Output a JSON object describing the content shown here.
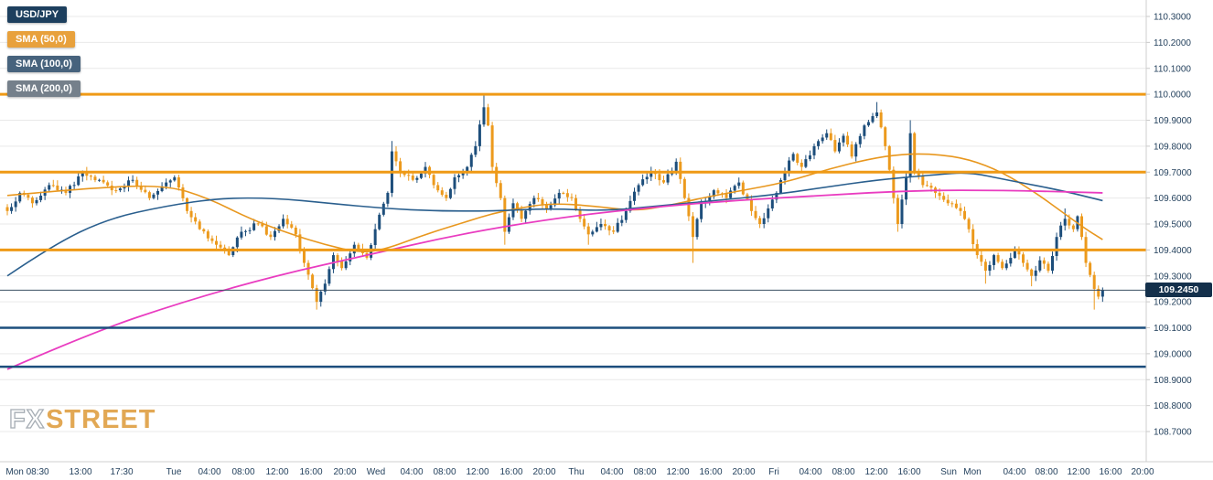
{
  "watermark": {
    "fx": "FX",
    "street": "STREET"
  },
  "legend": {
    "symbol": "USD/JPY",
    "symbol_color": "#1d3f5e",
    "indicators": [
      {
        "label": "SMA (50,0)",
        "color": "#e8a13c"
      },
      {
        "label": "SMA (100,0)",
        "color": "#47637d"
      },
      {
        "label": "SMA (200,0)",
        "color": "#75808b"
      }
    ]
  },
  "last_price": {
    "value": "109.2450",
    "color": "#14304b"
  },
  "axes": {
    "y_ticks": [
      "110.3000",
      "110.2000",
      "110.1000",
      "110.0000",
      "109.9000",
      "109.8000",
      "109.7000",
      "109.6000",
      "109.5000",
      "109.4000",
      "109.3000",
      "109.2000",
      "109.1000",
      "109.0000",
      "108.9000",
      "108.8000",
      "108.7000"
    ],
    "x_labels": [
      {
        "label": "Mon 08:30",
        "x": 30
      },
      {
        "label": "13:00",
        "x": 88
      },
      {
        "label": "17:30",
        "x": 133
      },
      {
        "label": "Tue",
        "x": 190
      },
      {
        "label": "04:00",
        "x": 229
      },
      {
        "label": "08:00",
        "x": 266
      },
      {
        "label": "12:00",
        "x": 303
      },
      {
        "label": "16:00",
        "x": 340
      },
      {
        "label": "20:00",
        "x": 377
      },
      {
        "label": "Wed",
        "x": 411
      },
      {
        "label": "04:00",
        "x": 450
      },
      {
        "label": "08:00",
        "x": 486
      },
      {
        "label": "12:00",
        "x": 522
      },
      {
        "label": "16:00",
        "x": 559
      },
      {
        "label": "20:00",
        "x": 595
      },
      {
        "label": "Thu",
        "x": 630
      },
      {
        "label": "04:00",
        "x": 669
      },
      {
        "label": "08:00",
        "x": 705
      },
      {
        "label": "12:00",
        "x": 741
      },
      {
        "label": "16:00",
        "x": 777
      },
      {
        "label": "20:00",
        "x": 813
      },
      {
        "label": "Fri",
        "x": 846
      },
      {
        "label": "04:00",
        "x": 886
      },
      {
        "label": "08:00",
        "x": 922
      },
      {
        "label": "12:00",
        "x": 958
      },
      {
        "label": "16:00",
        "x": 994
      },
      {
        "label": "Sun",
        "x": 1037
      },
      {
        "label": "Mon",
        "x": 1063
      },
      {
        "label": "04:00",
        "x": 1109
      },
      {
        "label": "08:00",
        "x": 1144
      },
      {
        "label": "12:00",
        "x": 1179
      },
      {
        "label": "16:00",
        "x": 1214
      },
      {
        "label": "20:00",
        "x": 1249
      }
    ]
  },
  "chart_data": {
    "type": "candlestick",
    "pair": "USD/JPY",
    "y_range": [
      108.7,
      110.3
    ],
    "tick_interval": 0.1,
    "grid": true,
    "candle_count": 263,
    "up_color": "#1d4e7b",
    "down_color": "#ec9a1d",
    "price_keypoints": [
      [
        0,
        109.55
      ],
      [
        3,
        109.62
      ],
      [
        6,
        109.58
      ],
      [
        10,
        109.65
      ],
      [
        14,
        109.62
      ],
      [
        18,
        109.7
      ],
      [
        22,
        109.67
      ],
      [
        26,
        109.63
      ],
      [
        30,
        109.67
      ],
      [
        34,
        109.6
      ],
      [
        38,
        109.66
      ],
      [
        40,
        109.68
      ],
      [
        43,
        109.55
      ],
      [
        46,
        109.48
      ],
      [
        50,
        109.42
      ],
      [
        53,
        109.38
      ],
      [
        56,
        109.47
      ],
      [
        60,
        109.5
      ],
      [
        63,
        109.45
      ],
      [
        66,
        109.52
      ],
      [
        69,
        109.46
      ],
      [
        71,
        109.35
      ],
      [
        74,
        109.2
      ],
      [
        76,
        109.27
      ],
      [
        78,
        109.38
      ],
      [
        80,
        109.33
      ],
      [
        83,
        109.42
      ],
      [
        86,
        109.37
      ],
      [
        88,
        109.48
      ],
      [
        91,
        109.62
      ],
      [
        92,
        109.78
      ],
      [
        94,
        109.7
      ],
      [
        97,
        109.67
      ],
      [
        100,
        109.72
      ],
      [
        102,
        109.65
      ],
      [
        105,
        109.6
      ],
      [
        107,
        109.68
      ],
      [
        110,
        109.72
      ],
      [
        112,
        109.8
      ],
      [
        114,
        109.95
      ],
      [
        115,
        109.88
      ],
      [
        116,
        109.72
      ],
      [
        118,
        109.6
      ],
      [
        119,
        109.47
      ],
      [
        121,
        109.58
      ],
      [
        123,
        109.52
      ],
      [
        126,
        109.6
      ],
      [
        129,
        109.56
      ],
      [
        132,
        109.62
      ],
      [
        135,
        109.6
      ],
      [
        137,
        109.52
      ],
      [
        139,
        109.46
      ],
      [
        142,
        109.5
      ],
      [
        145,
        109.47
      ],
      [
        148,
        109.55
      ],
      [
        151,
        109.65
      ],
      [
        154,
        109.7
      ],
      [
        157,
        109.66
      ],
      [
        160,
        109.74
      ],
      [
        162,
        109.6
      ],
      [
        164,
        109.45
      ],
      [
        166,
        109.58
      ],
      [
        169,
        109.63
      ],
      [
        172,
        109.6
      ],
      [
        175,
        109.66
      ],
      [
        178,
        109.55
      ],
      [
        180,
        109.5
      ],
      [
        182,
        109.56
      ],
      [
        184,
        109.62
      ],
      [
        186,
        109.7
      ],
      [
        188,
        109.77
      ],
      [
        190,
        109.72
      ],
      [
        193,
        109.8
      ],
      [
        196,
        109.85
      ],
      [
        198,
        109.78
      ],
      [
        200,
        109.84
      ],
      [
        202,
        109.76
      ],
      [
        205,
        109.88
      ],
      [
        208,
        109.93
      ],
      [
        210,
        109.8
      ],
      [
        212,
        109.6
      ],
      [
        213,
        109.5
      ],
      [
        215,
        109.68
      ],
      [
        216,
        109.85
      ],
      [
        217,
        109.7
      ],
      [
        219,
        109.65
      ],
      [
        222,
        109.62
      ],
      [
        225,
        109.58
      ],
      [
        228,
        109.55
      ],
      [
        230,
        109.48
      ],
      [
        232,
        109.38
      ],
      [
        234,
        109.32
      ],
      [
        236,
        109.38
      ],
      [
        238,
        109.33
      ],
      [
        241,
        109.4
      ],
      [
        243,
        109.35
      ],
      [
        245,
        109.3
      ],
      [
        247,
        109.36
      ],
      [
        249,
        109.32
      ],
      [
        251,
        109.45
      ],
      [
        253,
        109.52
      ],
      [
        255,
        109.48
      ],
      [
        256,
        109.53
      ],
      [
        257,
        109.45
      ],
      [
        258,
        109.35
      ],
      [
        260,
        109.25
      ],
      [
        261,
        109.22
      ],
      [
        262,
        109.245
      ]
    ],
    "wick_extremes": [
      {
        "i": 19,
        "high": 109.72
      },
      {
        "i": 74,
        "low": 109.17
      },
      {
        "i": 92,
        "high": 109.82
      },
      {
        "i": 114,
        "high": 110.0
      },
      {
        "i": 119,
        "low": 109.42
      },
      {
        "i": 139,
        "low": 109.42
      },
      {
        "i": 164,
        "low": 109.35
      },
      {
        "i": 208,
        "high": 109.97
      },
      {
        "i": 213,
        "low": 109.47
      },
      {
        "i": 216,
        "high": 109.9
      },
      {
        "i": 234,
        "low": 109.27
      },
      {
        "i": 245,
        "low": 109.26
      },
      {
        "i": 253,
        "high": 109.56
      },
      {
        "i": 260,
        "low": 109.17
      },
      {
        "i": 262,
        "low": 109.2
      }
    ],
    "levels": [
      {
        "value": 110.0,
        "label": "110.0000",
        "color": "#ef9a16",
        "thickness": 3
      },
      {
        "value": 109.7,
        "label": "109.7000",
        "color": "#ef9a16",
        "thickness": 3
      },
      {
        "value": 109.4,
        "label": "109.4000",
        "color": "#ef9a16",
        "thickness": 3
      },
      {
        "value": 109.1,
        "label": "109.1000",
        "color": "#1c4e7d",
        "thickness": 2.5
      },
      {
        "value": 108.95,
        "label": "108.9500",
        "color": "#1c4e7d",
        "thickness": 2.5
      }
    ],
    "last_price_line": {
      "value": 109.245,
      "color": "#3a4f63",
      "thickness": 1
    },
    "sma_series": [
      {
        "name": "SMA (50,0)",
        "period": 50,
        "color": "#e8971e",
        "thickness": 1.6,
        "points": [
          [
            0,
            109.61
          ],
          [
            20,
            109.64
          ],
          [
            38,
            109.65
          ],
          [
            48,
            109.6
          ],
          [
            58,
            109.52
          ],
          [
            68,
            109.46
          ],
          [
            76,
            109.42
          ],
          [
            84,
            109.39
          ],
          [
            90,
            109.4
          ],
          [
            100,
            109.46
          ],
          [
            110,
            109.51
          ],
          [
            116,
            109.54
          ],
          [
            122,
            109.56
          ],
          [
            130,
            109.58
          ],
          [
            140,
            109.57
          ],
          [
            150,
            109.55
          ],
          [
            158,
            109.57
          ],
          [
            166,
            109.6
          ],
          [
            176,
            109.63
          ],
          [
            186,
            109.66
          ],
          [
            196,
            109.71
          ],
          [
            206,
            109.75
          ],
          [
            214,
            109.77
          ],
          [
            222,
            109.77
          ],
          [
            230,
            109.75
          ],
          [
            238,
            109.7
          ],
          [
            246,
            109.62
          ],
          [
            252,
            109.55
          ],
          [
            258,
            109.48
          ],
          [
            262,
            109.44
          ]
        ]
      },
      {
        "name": "SMA (100,0)",
        "period": 100,
        "color": "#2a5f8e",
        "thickness": 1.6,
        "points": [
          [
            0,
            109.3
          ],
          [
            11,
            109.42
          ],
          [
            24,
            109.52
          ],
          [
            38,
            109.57
          ],
          [
            51,
            109.6
          ],
          [
            64,
            109.6
          ],
          [
            77,
            109.58
          ],
          [
            90,
            109.56
          ],
          [
            103,
            109.55
          ],
          [
            116,
            109.55
          ],
          [
            130,
            109.56
          ],
          [
            143,
            109.55
          ],
          [
            156,
            109.57
          ],
          [
            169,
            109.59
          ],
          [
            182,
            109.61
          ],
          [
            195,
            109.64
          ],
          [
            208,
            109.67
          ],
          [
            222,
            109.69
          ],
          [
            230,
            109.7
          ],
          [
            239,
            109.67
          ],
          [
            252,
            109.63
          ],
          [
            262,
            109.59
          ]
        ]
      },
      {
        "name": "SMA (200,0)",
        "period": 200,
        "color": "#e93cc0",
        "thickness": 1.8,
        "points": [
          [
            0,
            108.94
          ],
          [
            20,
            109.08
          ],
          [
            42,
            109.2
          ],
          [
            64,
            109.3
          ],
          [
            86,
            109.38
          ],
          [
            108,
            109.46
          ],
          [
            130,
            109.52
          ],
          [
            151,
            109.56
          ],
          [
            173,
            109.59
          ],
          [
            195,
            109.61
          ],
          [
            217,
            109.63
          ],
          [
            239,
            109.63
          ],
          [
            262,
            109.62
          ]
        ]
      }
    ]
  }
}
